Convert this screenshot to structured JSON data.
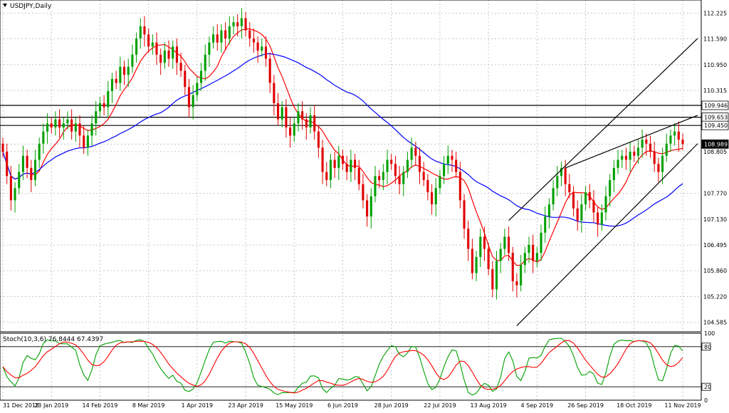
{
  "symbol_label": "USDJPY,Daily",
  "colors": {
    "bull_candle": "#00a000",
    "bear_candle": "#e00000",
    "ma_fast": "#ff0000",
    "ma_slow": "#0000ff",
    "stoch_main": "#00a000",
    "stoch_signal": "#ff0000",
    "grid": "#c8c8c8",
    "lines": "#000000"
  },
  "chart_data": [
    {
      "type": "candlestick",
      "title": "USDJPY,Daily",
      "ylim": [
        104.35,
        112.55
      ],
      "grid": true,
      "x_tick_labels": [
        "31 Dec 2018",
        "23 Jan 2019",
        "14 Feb 2019",
        "8 Mar 2019",
        "1 Apr 2019",
        "23 Apr 2019",
        "15 May 2019",
        "6 Jun 2019",
        "28 Jun 2019",
        "22 Jul 2019",
        "13 Aug 2019",
        "4 Sep 2019",
        "26 Sep 2019",
        "18 Oct 2019",
        "11 Nov 2019"
      ],
      "y_tick_labels": [
        "112.225",
        "111.590",
        "110.950",
        "110.315",
        "109.946",
        "109.653",
        "109.450",
        "108.989",
        "108.805",
        "107.770",
        "107.130",
        "106.495",
        "105.860",
        "105.220",
        "104.585"
      ],
      "horizontal_levels": [
        109.946,
        109.653,
        109.45,
        108.989
      ],
      "current_price": 108.989,
      "closes": [
        108.8,
        108.2,
        107.6,
        107.9,
        108.3,
        108.7,
        108.4,
        108.1,
        108.6,
        109.0,
        109.3,
        109.5,
        109.4,
        109.6,
        109.4,
        109.5,
        109.6,
        109.3,
        109.5,
        109.2,
        108.9,
        109.2,
        109.5,
        109.8,
        110.0,
        109.9,
        110.3,
        110.6,
        110.5,
        110.9,
        110.7,
        110.9,
        111.2,
        111.6,
        111.9,
        111.7,
        111.4,
        111.5,
        111.2,
        111.0,
        111.3,
        111.1,
        111.4,
        111.0,
        110.8,
        110.4,
        109.9,
        110.2,
        110.5,
        110.8,
        111.2,
        111.5,
        111.7,
        111.5,
        111.8,
        111.6,
        111.9,
        112.0,
        111.9,
        112.1,
        111.8,
        111.6,
        111.5,
        111.3,
        111.4,
        111.1,
        110.5,
        110.0,
        109.6,
        109.9,
        109.4,
        109.2,
        109.5,
        109.8,
        109.6,
        109.4,
        109.7,
        109.3,
        108.9,
        108.3,
        108.1,
        108.6,
        108.4,
        108.7,
        108.5,
        108.3,
        108.6,
        108.4,
        108.0,
        107.6,
        107.2,
        107.7,
        108.2,
        108.1,
        108.3,
        108.6,
        108.5,
        108.2,
        108.0,
        108.3,
        108.6,
        108.9,
        108.7,
        108.3,
        108.1,
        107.8,
        107.5,
        107.9,
        108.2,
        108.5,
        108.7,
        108.6,
        108.3,
        107.6,
        106.9,
        106.4,
        105.8,
        106.2,
        106.7,
        106.4,
        105.9,
        105.4,
        106.1,
        106.4,
        106.7,
        106.3,
        105.6,
        105.5,
        106.0,
        106.3,
        106.5,
        106.1,
        106.3,
        106.8,
        107.2,
        107.5,
        107.9,
        108.2,
        108.4,
        108.0,
        107.8,
        107.4,
        107.1,
        107.5,
        107.8,
        107.6,
        107.3,
        107.0,
        107.3,
        107.7,
        108.1,
        108.4,
        108.6,
        108.7,
        108.6,
        108.8,
        108.7,
        108.9,
        109.1,
        109.0,
        108.8,
        108.5,
        108.3,
        108.7,
        109.0,
        109.2,
        109.3,
        109.1,
        108.99
      ],
      "series": [
        {
          "name": "",
          "kind": "moving-average-fast"
        },
        {
          "name": "",
          "kind": "moving-average-slow"
        }
      ],
      "trendlines": "ascending channel from 13 Aug 2019 to 11 Nov 2019"
    },
    {
      "type": "line",
      "title": "Stoch(10,3,6) 76.8444 67.4397",
      "ylim": [
        0,
        100
      ],
      "y_tick_labels": [
        "100",
        "80",
        "20",
        "0"
      ],
      "levels": [
        80,
        20
      ],
      "series": [
        {
          "name": "",
          "kind": "main"
        },
        {
          "name": "",
          "kind": "signal"
        }
      ],
      "last_values": [
        76.8444,
        67.4397
      ]
    }
  ]
}
